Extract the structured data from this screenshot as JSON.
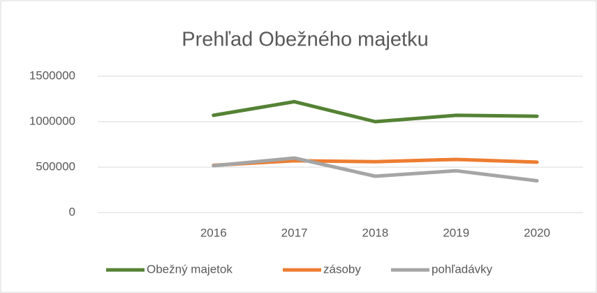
{
  "chart_data": {
    "type": "line",
    "title": "Prehľad Obežného majetku",
    "categories": [
      null,
      "2016",
      "2017",
      "2018",
      "2019",
      "2020"
    ],
    "series": [
      {
        "name": "Obežný majetok",
        "color": "#548235",
        "values": [
          null,
          1070000,
          1220000,
          1000000,
          1070000,
          1060000
        ]
      },
      {
        "name": "zásoby",
        "color": "#ed7d31",
        "values": [
          null,
          520000,
          570000,
          560000,
          585000,
          555000
        ]
      },
      {
        "name": "pohľadávky",
        "color": "#a5a5a5",
        "values": [
          null,
          515000,
          600000,
          400000,
          460000,
          350000
        ]
      }
    ],
    "ylim": [
      0,
      1500000
    ],
    "yticks": [
      0,
      500000,
      1000000,
      1500000
    ],
    "grid": true,
    "legend": "bottom"
  }
}
